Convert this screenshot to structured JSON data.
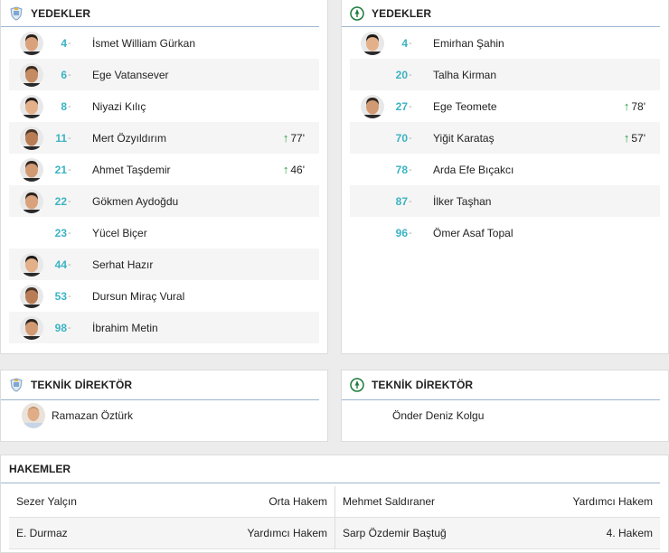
{
  "home": {
    "subs_title": "YEDEKLER",
    "players": [
      {
        "number": "4",
        "name": "İsmet William Gürkan",
        "photo": true,
        "sub": ""
      },
      {
        "number": "6",
        "name": "Ege Vatansever",
        "photo": true,
        "sub": ""
      },
      {
        "number": "8",
        "name": "Niyazi Kılıç",
        "photo": true,
        "sub": ""
      },
      {
        "number": "11",
        "name": "Mert Özyıldırım",
        "photo": true,
        "sub": "77'"
      },
      {
        "number": "21",
        "name": "Ahmet Taşdemir",
        "photo": true,
        "sub": "46'"
      },
      {
        "number": "22",
        "name": "Gökmen Aydoğdu",
        "photo": true,
        "sub": ""
      },
      {
        "number": "23",
        "name": "Yücel Biçer",
        "photo": false,
        "sub": ""
      },
      {
        "number": "44",
        "name": "Serhat Hazır",
        "photo": true,
        "sub": ""
      },
      {
        "number": "53",
        "name": "Dursun Miraç Vural",
        "photo": true,
        "sub": ""
      },
      {
        "number": "98",
        "name": "İbrahim Metin",
        "photo": true,
        "sub": ""
      }
    ],
    "coach_title": "TEKNİK DİREKTÖR",
    "coach_name": "Ramazan Öztürk"
  },
  "away": {
    "subs_title": "YEDEKLER",
    "players": [
      {
        "number": "4",
        "name": "Emirhan Şahin",
        "photo": true,
        "sub": ""
      },
      {
        "number": "20",
        "name": "Talha Kirman",
        "photo": false,
        "sub": ""
      },
      {
        "number": "27",
        "name": "Ege Teomete",
        "photo": true,
        "sub": "78'"
      },
      {
        "number": "70",
        "name": "Yiğit Karataş",
        "photo": false,
        "sub": "57'"
      },
      {
        "number": "78",
        "name": "Arda Efe Bıçakcı",
        "photo": false,
        "sub": ""
      },
      {
        "number": "87",
        "name": "İlker Taşhan",
        "photo": false,
        "sub": ""
      },
      {
        "number": "96",
        "name": "Ömer Asaf Topal",
        "photo": false,
        "sub": ""
      }
    ],
    "coach_title": "TEKNİK DİREKTÖR",
    "coach_name": "Önder Deniz Kolgu"
  },
  "referees": {
    "title": "HAKEMLER",
    "rows": [
      [
        {
          "name": "Sezer Yalçın",
          "role": "Orta Hakem"
        },
        {
          "name": "Mehmet Saldıraner",
          "role": "Yardımcı Hakem"
        }
      ],
      [
        {
          "name": "E. Durmaz",
          "role": "Yardımcı Hakem"
        },
        {
          "name": "Sarp Özdemir Baştuğ",
          "role": "4. Hakem"
        }
      ]
    ]
  },
  "colors": {
    "number": "#3bb3c3",
    "sub_arrow": "#1f9e3a",
    "divider": "#9bb5cf"
  },
  "icons": {
    "home_crest": "home-team-crest-icon",
    "away_crest": "away-team-crest-icon",
    "sub_in": "arrow-up-icon"
  }
}
